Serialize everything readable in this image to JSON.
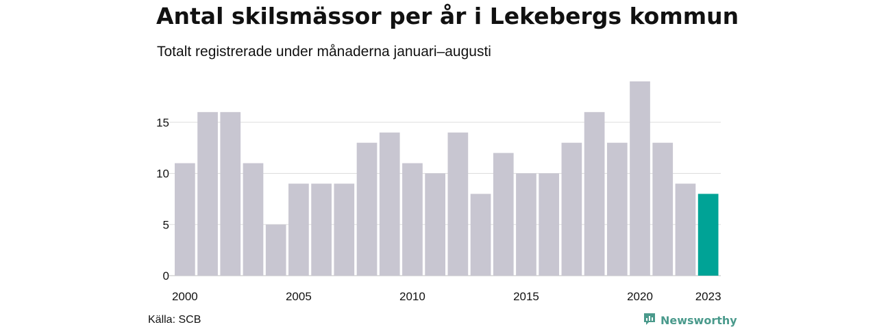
{
  "title": "Antal skilsmässor per år i Lekebergs kommun",
  "subtitle": "Totalt registrerade under månaderna januari–augusti",
  "source": "Källa: SCB",
  "brand": {
    "name": "Newsworthy",
    "icon": "bar-chart-icon",
    "color": "#4a9a8c"
  },
  "chart_data": {
    "type": "bar",
    "categories": [
      "2000",
      "2001",
      "2002",
      "2003",
      "2004",
      "2005",
      "2006",
      "2007",
      "2008",
      "2009",
      "2010",
      "2011",
      "2012",
      "2013",
      "2014",
      "2015",
      "2016",
      "2017",
      "2018",
      "2019",
      "2020",
      "2021",
      "2022",
      "2023"
    ],
    "values": [
      11,
      16,
      16,
      11,
      5,
      9,
      9,
      9,
      13,
      14,
      11,
      10,
      14,
      8,
      12,
      10,
      10,
      13,
      16,
      13,
      19,
      13,
      9,
      8
    ],
    "x_tick_labels": [
      "2000",
      "2005",
      "2010",
      "2015",
      "2020",
      "2023"
    ],
    "y_ticks": [
      0,
      5,
      10,
      15
    ],
    "ylim": [
      0,
      19
    ],
    "grid": true,
    "colors": {
      "default": "#c8c6d1",
      "highlight": "#00a396",
      "highlight_category": "2023"
    },
    "xlabel": "",
    "ylabel": ""
  }
}
